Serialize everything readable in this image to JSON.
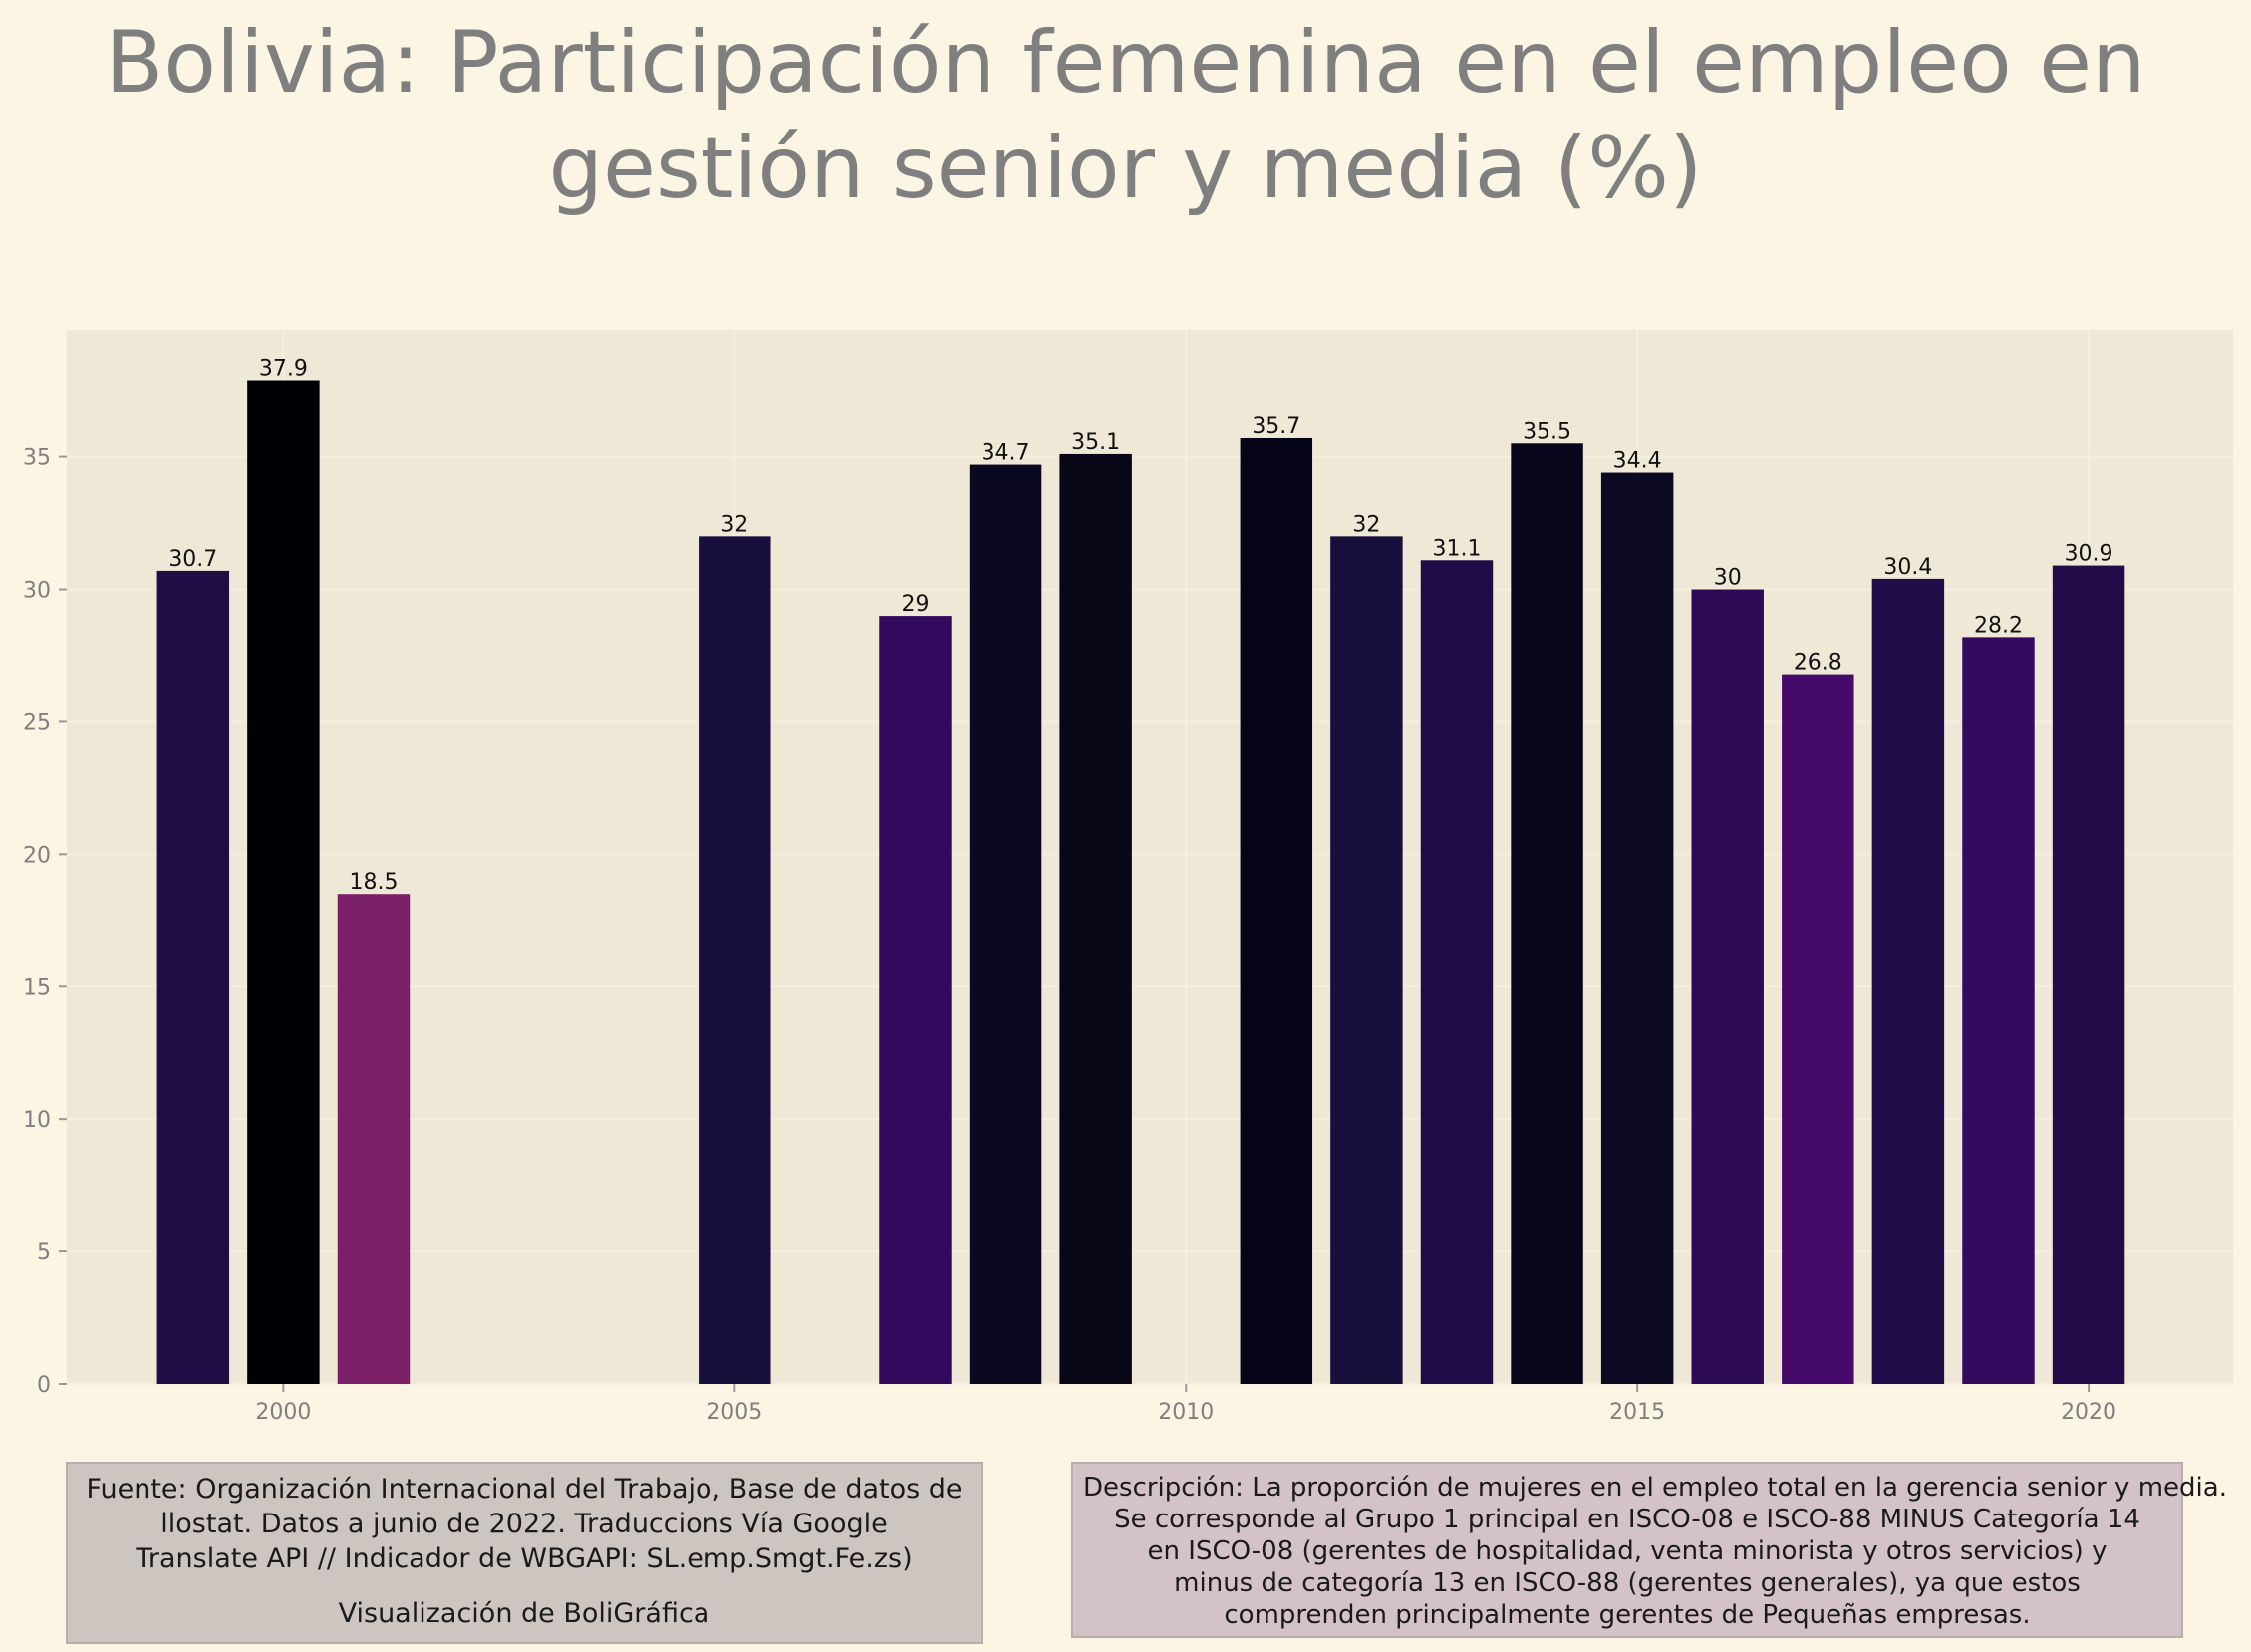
{
  "title_lines": [
    "Bolivia:  Participación femenina en el empleo en",
    "gestión senior y media (%)"
  ],
  "chart_data": {
    "type": "bar",
    "x": [
      1999,
      2000,
      2001,
      2005,
      2007,
      2008,
      2009,
      2011,
      2012,
      2013,
      2014,
      2015,
      2016,
      2017,
      2018,
      2019,
      2020
    ],
    "values": [
      30.7,
      37.9,
      18.5,
      32,
      29,
      34.7,
      35.1,
      35.7,
      32,
      31.1,
      35.5,
      34.4,
      30,
      26.8,
      30.4,
      28.2,
      30.9
    ],
    "value_labels": [
      "30.7",
      "37.9",
      "18.5",
      "32",
      "29",
      "34.7",
      "35.1",
      "35.7",
      "32",
      "31.1",
      "35.5",
      "34.4",
      "30",
      "26.8",
      "30.4",
      "28.2",
      "30.9"
    ],
    "colors": [
      "#200d44",
      "#000004",
      "#7b1f68",
      "#180f3c",
      "#330a5e",
      "#0b0920",
      "#090717",
      "#050416",
      "#180f3d",
      "#1f0c46",
      "#07061a",
      "#0c0923",
      "#2c0b54",
      "#460b6a",
      "#1f0c48",
      "#340a5f",
      "#230b4a"
    ],
    "xlim": [
      1997.6,
      2021.6
    ],
    "ylim": [
      0,
      39.8
    ],
    "xticks": [
      2000,
      2005,
      2010,
      2015,
      2020
    ],
    "yticks": [
      0,
      5,
      10,
      15,
      20,
      25,
      30,
      35
    ],
    "grid": true,
    "xlabel": "",
    "ylabel": ""
  },
  "source_lines": [
    "Fuente: Organización Internacional del Trabajo, Base de datos de",
    "llostat. Datos a junio de 2022.   Traduccions Vía Google",
    "Translate API // Indicador de WBGAPI: SL.emp.Smgt.Fe.zs)",
    "Visualización de BoliGráfica"
  ],
  "description_lines": [
    "Descripción: La proporción de mujeres en el empleo total en la gerencia senior y media.",
    "Se corresponde al Grupo 1 principal en ISCO-08 e ISCO-88 MINUS Categoría 14",
    "en ISCO-08 (gerentes de hospitalidad, venta minorista y otros servicios) y",
    "minus de categoría 13 en ISCO-88 (gerentes generales), ya que estos",
    "comprenden principalmente gerentes de Pequeñas empresas."
  ],
  "colors": {
    "background": "#fcf5e3",
    "panel": "#f0e8d6",
    "grid": "#f6efdf",
    "title": "#7f7f7f",
    "axis_text": "#7f7f7f"
  }
}
